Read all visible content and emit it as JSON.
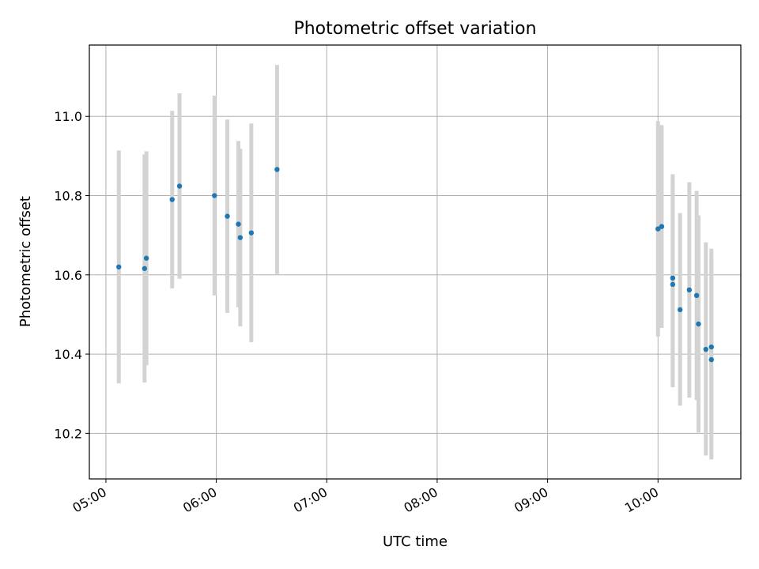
{
  "chart_data": {
    "type": "scatter",
    "title": "Photometric offset variation",
    "xlabel": "UTC time",
    "ylabel": "Photometric offset",
    "xlim": [
      "04:51",
      "10:45"
    ],
    "ylim": [
      10.085,
      11.18
    ],
    "xticks": [
      "05:00",
      "06:00",
      "07:00",
      "08:00",
      "09:00",
      "10:00"
    ],
    "yticks": [
      10.2,
      10.4,
      10.6,
      10.8,
      11.0
    ],
    "grid": true,
    "colors": {
      "point": "#1f77b4",
      "errorbar": "#d3d3d3",
      "grid": "#b0b0b0"
    },
    "points": [
      {
        "t": "05:07",
        "y": 10.62,
        "y_low": 10.326,
        "y_high": 10.914
      },
      {
        "t": "05:21",
        "y": 10.616,
        "y_low": 10.328,
        "y_high": 10.904
      },
      {
        "t": "05:22",
        "y": 10.642,
        "y_low": 10.372,
        "y_high": 10.912
      },
      {
        "t": "05:36",
        "y": 10.79,
        "y_low": 10.566,
        "y_high": 11.014
      },
      {
        "t": "05:40",
        "y": 10.824,
        "y_low": 10.59,
        "y_high": 11.058
      },
      {
        "t": "05:59",
        "y": 10.8,
        "y_low": 10.548,
        "y_high": 11.052
      },
      {
        "t": "06:06",
        "y": 10.748,
        "y_low": 10.504,
        "y_high": 10.992
      },
      {
        "t": "06:12",
        "y": 10.728,
        "y_low": 10.518,
        "y_high": 10.938
      },
      {
        "t": "06:13",
        "y": 10.694,
        "y_low": 10.47,
        "y_high": 10.918
      },
      {
        "t": "06:19",
        "y": 10.706,
        "y_low": 10.43,
        "y_high": 10.982
      },
      {
        "t": "06:33",
        "y": 10.866,
        "y_low": 10.602,
        "y_high": 11.13
      },
      {
        "t": "10:00",
        "y": 10.716,
        "y_low": 10.444,
        "y_high": 10.988
      },
      {
        "t": "10:02",
        "y": 10.722,
        "y_low": 10.466,
        "y_high": 10.978
      },
      {
        "t": "10:08",
        "y": 10.592,
        "y_low": 10.33,
        "y_high": 10.854
      },
      {
        "t": "10:08",
        "y": 10.576,
        "y_low": 10.316,
        "y_high": 10.836
      },
      {
        "t": "10:12",
        "y": 10.512,
        "y_low": 10.27,
        "y_high": 10.756
      },
      {
        "t": "10:17",
        "y": 10.562,
        "y_low": 10.29,
        "y_high": 10.834
      },
      {
        "t": "10:21",
        "y": 10.548,
        "y_low": 10.284,
        "y_high": 10.812
      },
      {
        "t": "10:22",
        "y": 10.476,
        "y_low": 10.202,
        "y_high": 10.75
      },
      {
        "t": "10:26",
        "y": 10.412,
        "y_low": 10.144,
        "y_high": 10.682
      },
      {
        "t": "10:29",
        "y": 10.418,
        "y_low": 10.196,
        "y_high": 10.64
      },
      {
        "t": "10:29",
        "y": 10.386,
        "y_low": 10.134,
        "y_high": 10.666
      }
    ]
  }
}
